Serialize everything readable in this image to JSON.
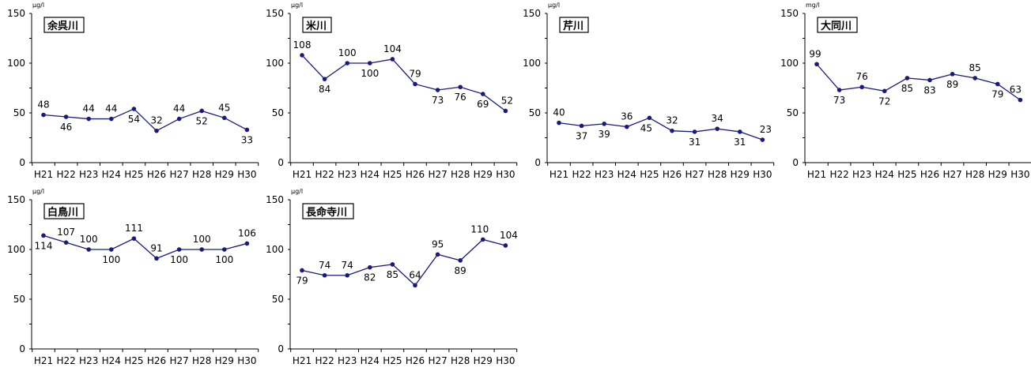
{
  "chart_data": [
    {
      "type": "line",
      "title": "余呉川",
      "unit": "μg/l",
      "categories": [
        "H21",
        "H22",
        "H23",
        "H24",
        "H25",
        "H26",
        "H27",
        "H28",
        "H29",
        "H30"
      ],
      "values": [
        48,
        46,
        44,
        44,
        54,
        32,
        44,
        52,
        45,
        33
      ],
      "ylim": [
        0,
        150
      ],
      "yticks": [
        0,
        50,
        100,
        150
      ],
      "color": "#1a1a7a"
    },
    {
      "type": "line",
      "title": "米川",
      "unit": "μg/l",
      "categories": [
        "H21",
        "H22",
        "H23",
        "H24",
        "H25",
        "H26",
        "H27",
        "H28",
        "H29",
        "H30"
      ],
      "values": [
        108,
        84,
        100,
        100,
        104,
        79,
        73,
        76,
        69,
        52
      ],
      "ylim": [
        0,
        150
      ],
      "yticks": [
        0,
        50,
        100,
        150
      ],
      "color": "#1a1a7a"
    },
    {
      "type": "line",
      "title": "芹川",
      "unit": "μg/l",
      "categories": [
        "H21",
        "H22",
        "H23",
        "H24",
        "H25",
        "H26",
        "H27",
        "H28",
        "H29",
        "H30"
      ],
      "values": [
        40,
        37,
        39,
        36,
        45,
        32,
        31,
        34,
        31,
        23
      ],
      "ylim": [
        0,
        150
      ],
      "yticks": [
        0,
        50,
        100,
        150
      ],
      "color": "#1a1a7a"
    },
    {
      "type": "line",
      "title": "大同川",
      "unit": "mg/l",
      "categories": [
        "H21",
        "H22",
        "H23",
        "H24",
        "H25",
        "H26",
        "H27",
        "H28",
        "H29",
        "H30"
      ],
      "values": [
        99,
        73,
        76,
        72,
        85,
        83,
        89,
        85,
        79,
        63
      ],
      "ylim": [
        0,
        150
      ],
      "yticks": [
        0,
        50,
        100,
        150
      ],
      "color": "#1a1a7a"
    },
    {
      "type": "line",
      "title": "白鳥川",
      "unit": "μg/l",
      "categories": [
        "H21",
        "H22",
        "H23",
        "H24",
        "H25",
        "H26",
        "H27",
        "H28",
        "H29",
        "H30"
      ],
      "values": [
        114,
        107,
        100,
        100,
        111,
        91,
        100,
        100,
        100,
        106
      ],
      "ylim": [
        0,
        150
      ],
      "yticks": [
        0,
        50,
        100,
        150
      ],
      "color": "#1a1a7a"
    },
    {
      "type": "line",
      "title": "長命寺川",
      "unit": "μg/l",
      "categories": [
        "H21",
        "H22",
        "H23",
        "H24",
        "H25",
        "H26",
        "H27",
        "H28",
        "H29",
        "H30"
      ],
      "values": [
        79,
        74,
        74,
        82,
        85,
        64,
        95,
        89,
        110,
        104
      ],
      "ylim": [
        0,
        150
      ],
      "yticks": [
        0,
        50,
        100,
        150
      ],
      "color": "#1a1a7a"
    }
  ]
}
